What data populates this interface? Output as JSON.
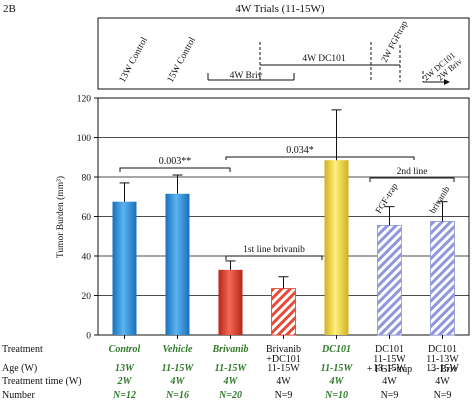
{
  "panel_label": "2B",
  "timeline": {
    "title": "4W Trials (11-15W)",
    "labels": {
      "c13": "13W Control",
      "c15": "15W Control",
      "briv": "4W Briv",
      "dc101": "4W DC101",
      "fgftrap": "2W FGFtrap",
      "dc101_2w": "2W DC101",
      "briv_2w": "2W Briv"
    }
  },
  "chart_data": {
    "type": "bar",
    "ylabel": "Tumor Burden (mm³)",
    "ylim": [
      0,
      120
    ],
    "yticks": [
      0,
      20,
      40,
      60,
      80,
      100,
      120
    ],
    "grid": true,
    "series_type": "bar_with_error",
    "categories": [
      "Control",
      "Vehicle",
      "Brivanib",
      "Brivanib +DC101",
      "DC101",
      "DC101 11-15W + FGF-trap",
      "DC101 11-13W → Briv"
    ],
    "values": [
      67.5,
      71.5,
      33.0,
      23.5,
      88.5,
      55.5,
      57.5
    ],
    "errors": [
      9.5,
      9.5,
      4.5,
      6.0,
      25.5,
      9.5,
      10.0
    ],
    "colors": [
      "#2a8fdc",
      "#2a8fdc",
      "#e23a2a",
      "#e23a2a",
      "#f0d030",
      "#8e96dc",
      "#8e96dc"
    ],
    "hatched": [
      false,
      false,
      false,
      true,
      false,
      true,
      true
    ],
    "annotations": {
      "p1": "0.003**",
      "p2": "0.034*",
      "first_line": "1st line brivanib",
      "second_line": "2nd line",
      "fgf_trap": "FGF-trap",
      "brivanib": "brivanib"
    }
  },
  "table": {
    "row_headers": {
      "treatment": "Treatment",
      "age": "Age (W)",
      "treatment_time": "Treatment time (W)",
      "number": "Number"
    },
    "treatment": [
      [
        "Control"
      ],
      [
        "Vehicle"
      ],
      [
        "Brivanib"
      ],
      [
        "Brivanib",
        "+DC101"
      ],
      [
        "DC101"
      ],
      [
        "DC101",
        "11-15W",
        "+ FGF-trap"
      ],
      [
        "DC101",
        "11-13W",
        "→ Briv"
      ]
    ],
    "age": [
      "13W",
      "11-15W",
      "11-15W",
      "11-15W",
      "11-15W",
      "13-15W",
      "13-15W"
    ],
    "treatment_time": [
      "2W",
      "4W",
      "4W",
      "4W",
      "4W",
      "4W",
      "4W"
    ],
    "number": [
      "N=12",
      "N=16",
      "N=20",
      "N=9",
      "N=10",
      "N=9",
      "N=9"
    ],
    "highlight": [
      true,
      true,
      true,
      false,
      true,
      false,
      false
    ]
  }
}
